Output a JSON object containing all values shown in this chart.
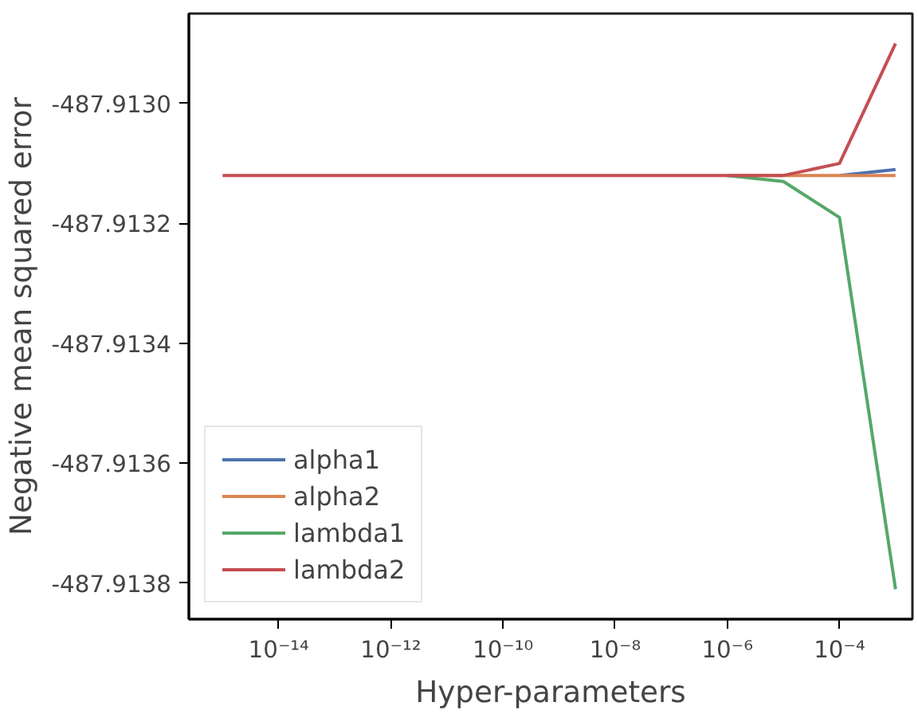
{
  "chart_data": {
    "type": "line",
    "xlabel": "Hyper-parameters",
    "ylabel": "Negative mean squared error",
    "x": [
      1e-15,
      1e-14,
      1e-13,
      1e-12,
      1e-11,
      1e-10,
      1e-09,
      1e-08,
      1e-07,
      1e-06,
      1e-05,
      0.0001,
      0.001
    ],
    "series": [
      {
        "name": "alpha1",
        "color": "#4c72b0",
        "values": [
          null,
          null,
          null,
          null,
          null,
          null,
          null,
          null,
          null,
          null,
          null,
          -487.91312,
          -487.91311
        ]
      },
      {
        "name": "alpha2",
        "color": "#dd8452",
        "values": [
          null,
          null,
          null,
          null,
          null,
          null,
          null,
          null,
          null,
          -487.91312,
          -487.91312,
          -487.91312,
          -487.91312
        ]
      },
      {
        "name": "lambda1",
        "color": "#55a868",
        "values": [
          null,
          null,
          null,
          null,
          null,
          null,
          null,
          null,
          null,
          -487.91312,
          -487.91313,
          -487.91319,
          -487.91381
        ]
      },
      {
        "name": "lambda2",
        "color": "#c44e52",
        "values": [
          -487.91312,
          -487.91312,
          -487.91312,
          -487.91312,
          -487.91312,
          -487.91312,
          -487.91312,
          -487.91312,
          -487.91312,
          -487.91312,
          -487.91312,
          -487.9131,
          -487.9129
        ]
      }
    ],
    "log": "x",
    "xlim": [
      2.5e-16,
      0.002
    ],
    "xticks": [
      {
        "value": 1e-14,
        "label": "10⁻¹⁴"
      },
      {
        "value": 1e-12,
        "label": "10⁻¹²"
      },
      {
        "value": 1e-10,
        "label": "10⁻¹⁰"
      },
      {
        "value": 1e-08,
        "label": "10⁻⁸"
      },
      {
        "value": 1e-06,
        "label": "10⁻⁶"
      },
      {
        "value": 0.0001,
        "label": "10⁻⁴"
      }
    ],
    "ylim": [
      -487.91386,
      -487.91285
    ],
    "yticks": [
      {
        "value": -487.9138,
        "label": "-487.9138"
      },
      {
        "value": -487.9136,
        "label": "-487.9136"
      },
      {
        "value": -487.9134,
        "label": "-487.9134"
      },
      {
        "value": -487.9132,
        "label": "-487.9132"
      },
      {
        "value": -487.913,
        "label": "-487.9130"
      }
    ],
    "grid": false,
    "legend": "bottom left"
  }
}
